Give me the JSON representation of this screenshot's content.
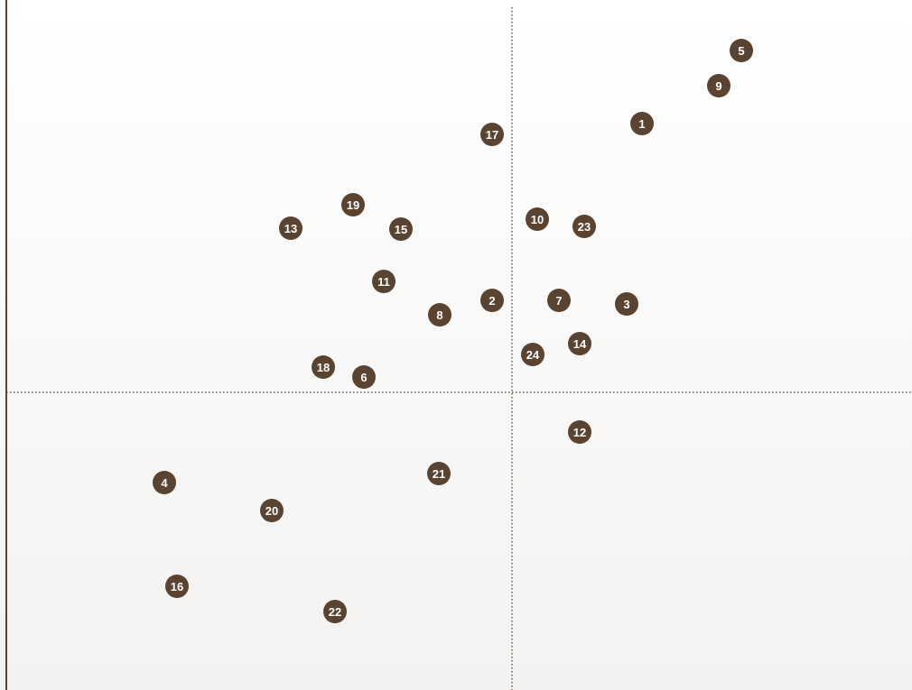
{
  "chart_data": {
    "type": "scatter",
    "title": "",
    "xlabel": "",
    "ylabel": "",
    "xlim": [
      0,
      1000
    ],
    "ylim": [
      0,
      760
    ],
    "quadrant_dividers": {
      "x": 560,
      "y": 327
    },
    "grid": false,
    "legend": "none",
    "point_labels": [
      "1",
      "2",
      "3",
      "4",
      "5",
      "6",
      "7",
      "8",
      "9",
      "10",
      "11",
      "12",
      "13",
      "14",
      "15",
      "16",
      "17",
      "18",
      "19",
      "20",
      "21",
      "22",
      "23",
      "24"
    ],
    "x": [
      704,
      538,
      687,
      175,
      814,
      396,
      612,
      480,
      789,
      588,
      418,
      635,
      315,
      635,
      437,
      189,
      538,
      351,
      384,
      294,
      479,
      364,
      640,
      583
    ],
    "y": [
      625,
      429,
      425,
      227,
      706,
      344,
      429,
      413,
      667,
      519,
      450,
      283,
      509,
      381,
      508,
      112,
      613,
      355,
      535,
      196,
      237,
      84,
      511,
      369
    ]
  },
  "colors": {
    "point_fill": "#5a4330",
    "point_label": "#ffffff",
    "axis_line": "#5a4330",
    "divider": "#6b5a4a",
    "background_top": "#ffffff",
    "background_bottom": "#f3f2f1"
  }
}
